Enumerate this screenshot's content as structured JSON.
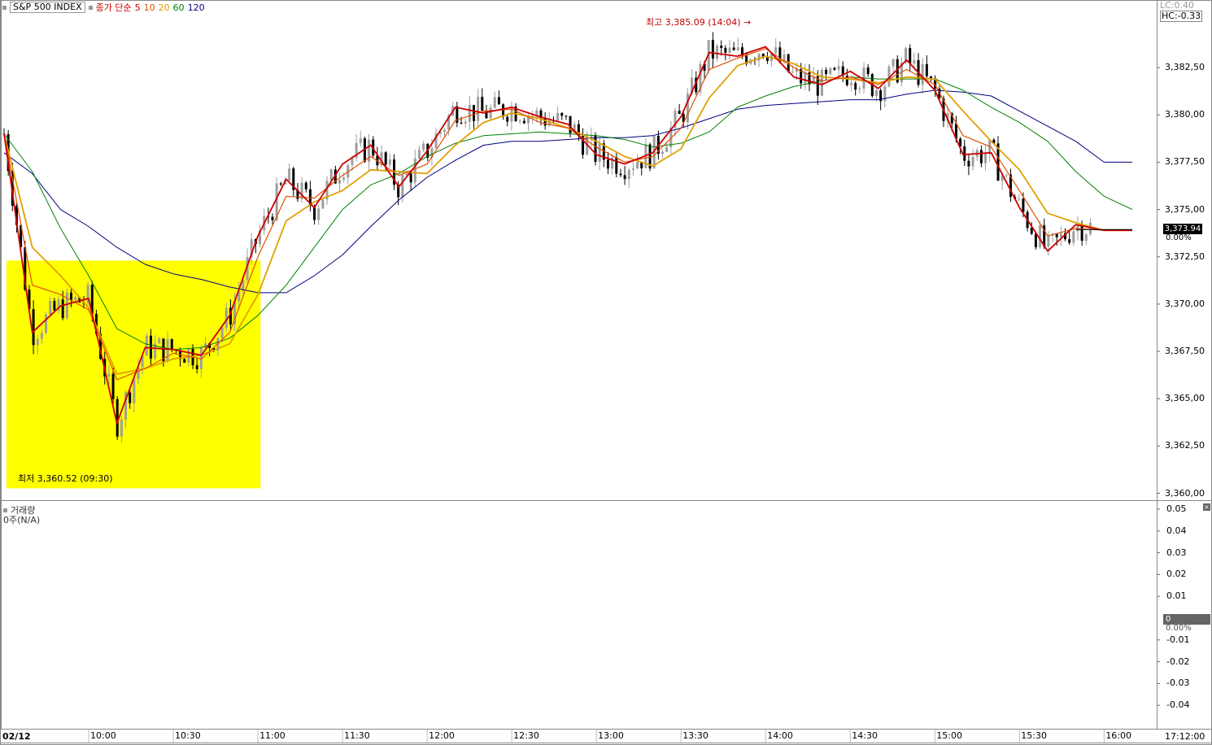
{
  "header": {
    "symbol": "S&P 500 INDEX",
    "ma_title": "종가 단순",
    "ma_periods": [
      "5",
      "10",
      "20",
      "60",
      "120"
    ],
    "lc": "LC:0.40",
    "hc": "HC:-0.33"
  },
  "annotations": {
    "high": "최고 3,385.09 (14:04)",
    "low": "최저 3,360.52 (09:30)",
    "last_price": "3,373.94",
    "change_pct": "0.00%"
  },
  "volume_panel": {
    "title": "거래량",
    "note": "0주(N/A)",
    "current": "0",
    "current_pct": "0.00%",
    "ticks": [
      "0.05",
      "0.04",
      "0.03",
      "0.02",
      "0.01",
      "-0.01",
      "-0.02",
      "-0.03",
      "-0.04"
    ]
  },
  "x_axis": {
    "date": "02/12",
    "ticks": [
      "10:00",
      "10:30",
      "11:00",
      "11:30",
      "12:00",
      "12:30",
      "13:00",
      "13:30",
      "14:00",
      "14:30",
      "15:00",
      "15:30",
      "16:00"
    ],
    "right_label": "17:12:00"
  },
  "colors": {
    "ma5": "#cc0000",
    "ma10": "#e05000",
    "ma20": "#e0a000",
    "ma60": "#008000",
    "ma120": "#000080",
    "highlight": "#ffff00",
    "up_candle": "#9e9e9e",
    "down_candle": "#000000"
  },
  "chart_data": {
    "type": "line",
    "title": "S&P 500 INDEX",
    "session_date": "02/12",
    "y_ticks": [
      "3,382,50",
      "3,380,00",
      "3,377,50",
      "3,375,00",
      "3,372,50",
      "3,370,00",
      "3,367,50",
      "3,365,00",
      "3,362,50",
      "3,360,00"
    ],
    "ylim": [
      3359.85,
      3385.9
    ],
    "x": [
      "09:30",
      "09:40",
      "09:50",
      "10:00",
      "10:10",
      "10:20",
      "10:30",
      "10:40",
      "10:50",
      "11:00",
      "11:10",
      "11:20",
      "11:30",
      "11:40",
      "11:50",
      "12:00",
      "12:10",
      "12:20",
      "12:30",
      "12:40",
      "12:50",
      "13:00",
      "13:10",
      "13:20",
      "13:30",
      "13:40",
      "13:50",
      "14:00",
      "14:10",
      "14:20",
      "14:30",
      "14:40",
      "14:50",
      "15:00",
      "15:10",
      "15:20",
      "15:30",
      "15:40",
      "15:50",
      "16:00",
      "16:10"
    ],
    "series": [
      {
        "name": "5",
        "values": [
          3379.0,
          3368.5,
          3369.9,
          3370.3,
          3363.7,
          3367.7,
          3367.6,
          3367.3,
          3369.4,
          3373.6,
          3376.6,
          3375.1,
          3377.4,
          3378.4,
          3376.2,
          3378.1,
          3380.4,
          3380.1,
          3380.4,
          3379.9,
          3379.5,
          3377.9,
          3377.4,
          3378.0,
          3379.9,
          3383.3,
          3383.1,
          3383.6,
          3382.0,
          3381.6,
          3382.3,
          3381.4,
          3382.9,
          3381.3,
          3377.9,
          3378.0,
          3375.1,
          3372.8,
          3374.2,
          3373.9,
          3373.9
        ]
      },
      {
        "name": "10",
        "values": [
          3379.0,
          3371.0,
          3370.5,
          3369.7,
          3366.0,
          3366.6,
          3367.4,
          3367.1,
          3368.5,
          3372.5,
          3375.7,
          3375.6,
          3376.8,
          3377.8,
          3376.8,
          3377.4,
          3379.7,
          3380.2,
          3380.3,
          3379.6,
          3379.3,
          3378.3,
          3377.5,
          3377.8,
          3379.3,
          3382.4,
          3383.0,
          3383.5,
          3382.5,
          3381.8,
          3382.0,
          3381.6,
          3382.4,
          3381.6,
          3378.9,
          3378.3,
          3376.0,
          3373.6,
          3374.0,
          3373.9,
          3373.9
        ]
      },
      {
        "name": "20",
        "values": [
          3379.0,
          3373.0,
          3371.5,
          3369.8,
          3366.3,
          3366.6,
          3367.1,
          3367.3,
          3367.9,
          3370.5,
          3374.4,
          3375.4,
          3376.0,
          3377.1,
          3377.0,
          3376.9,
          3378.4,
          3379.6,
          3380.1,
          3379.8,
          3379.3,
          3378.6,
          3377.8,
          3377.3,
          3378.2,
          3380.9,
          3382.6,
          3383.1,
          3382.7,
          3382.0,
          3381.9,
          3381.7,
          3382.0,
          3381.9,
          3380.2,
          3378.6,
          3377.1,
          3374.8,
          3374.3,
          3373.9,
          3373.9
        ]
      },
      {
        "name": "60",
        "values": [
          3379.0,
          3377.0,
          3374.0,
          3371.5,
          3368.7,
          3367.9,
          3367.6,
          3367.7,
          3368.2,
          3369.4,
          3371.0,
          3373.0,
          3375.0,
          3376.3,
          3376.9,
          3377.8,
          3378.5,
          3378.9,
          3379.0,
          3379.1,
          3379.0,
          3378.9,
          3378.7,
          3378.3,
          3378.5,
          3379.1,
          3380.4,
          3381.0,
          3381.5,
          3381.8,
          3382.0,
          3381.9,
          3381.9,
          3381.9,
          3381.3,
          3380.4,
          3379.6,
          3378.6,
          3377.0,
          3375.7,
          3375.0
        ]
      },
      {
        "name": "120",
        "values": [
          3378.0,
          3376.9,
          3375.0,
          3374.1,
          3373.0,
          3372.1,
          3371.6,
          3371.3,
          3370.9,
          3370.6,
          3370.6,
          3371.5,
          3372.6,
          3374.1,
          3375.5,
          3376.7,
          3377.6,
          3378.4,
          3378.6,
          3378.6,
          3378.7,
          3378.8,
          3378.8,
          3378.9,
          3379.3,
          3379.8,
          3380.3,
          3380.5,
          3380.6,
          3380.7,
          3380.8,
          3380.8,
          3381.1,
          3381.3,
          3381.2,
          3381.0,
          3380.2,
          3379.4,
          3378.6,
          3377.5,
          3377.5
        ]
      }
    ],
    "highlight_range": {
      "x_start": "09:30",
      "x_end": "10:54",
      "y_low": 3360.52,
      "y_high": 3372.3
    },
    "legend": "top-left",
    "grid": false
  }
}
